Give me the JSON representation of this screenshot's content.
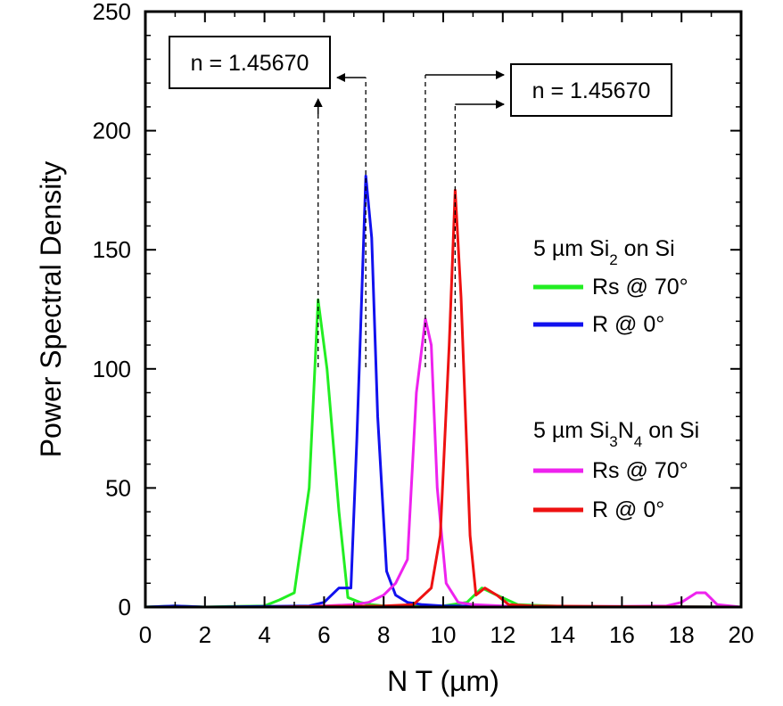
{
  "chart_data": {
    "type": "line",
    "xlabel": "N T (µm)",
    "ylabel": "Power Spectral Density",
    "xlim": [
      0,
      20
    ],
    "ylim": [
      0,
      250
    ],
    "xticks": [
      0,
      2,
      4,
      6,
      8,
      10,
      12,
      14,
      16,
      18,
      20
    ],
    "yticks": [
      0,
      50,
      100,
      150,
      200,
      250
    ],
    "grid": false,
    "legend_groups": [
      {
        "title": {
          "pre": "5 µm Si",
          "sub1": "2",
          "mid": " on Si",
          "sub2": "",
          "post": ""
        },
        "entries": [
          0,
          1
        ]
      },
      {
        "title": {
          "pre": "5 µm Si",
          "sub1": "3",
          "mid": "N",
          "sub2": "4",
          "post": " on Si"
        },
        "entries": [
          2,
          3
        ]
      }
    ],
    "series": [
      {
        "name": "Rs @ 70°",
        "color": "#22ee22",
        "x": [
          0,
          1,
          2,
          3,
          4,
          4.5,
          5,
          5.5,
          5.8,
          6.1,
          6.5,
          6.8,
          7.2,
          7.6,
          8,
          9,
          10,
          10.8,
          11.3,
          11.8,
          12.5,
          14,
          16,
          18,
          20
        ],
        "y": [
          0,
          0.5,
          0,
          0.3,
          0.5,
          3,
          6,
          50,
          129,
          100,
          40,
          4,
          2,
          1,
          0.5,
          0.3,
          0.5,
          2,
          8,
          5,
          1,
          0.3,
          0,
          0.2,
          0
        ]
      },
      {
        "name": "R @ 0°",
        "color": "#1111ee",
        "x": [
          0,
          1,
          2,
          4,
          5.5,
          6,
          6.5,
          6.9,
          7.1,
          7.4,
          7.6,
          7.8,
          8.1,
          8.4,
          8.8,
          9.3,
          10,
          12,
          14,
          16,
          18,
          20
        ],
        "y": [
          0,
          0.5,
          0,
          0.3,
          0.5,
          2,
          8,
          8,
          70,
          181,
          155,
          80,
          15,
          5,
          2,
          1,
          0.5,
          0.3,
          0.2,
          0.1,
          0.1,
          0
        ]
      },
      {
        "name": "Rs @ 70°",
        "color": "#ee22ee",
        "x": [
          0,
          5,
          6,
          7,
          7.5,
          8,
          8.4,
          8.8,
          9.1,
          9.4,
          9.6,
          9.8,
          10.1,
          10.5,
          11,
          12,
          14,
          16,
          17.5,
          18,
          18.5,
          18.8,
          19.2,
          20
        ],
        "y": [
          0,
          0,
          0.5,
          1,
          2,
          5,
          10,
          20,
          90,
          121,
          110,
          50,
          10,
          2,
          1,
          0.5,
          0.3,
          0.3,
          0.5,
          2,
          6,
          6,
          1,
          0
        ]
      },
      {
        "name": "R @ 0°",
        "color": "#ee1111",
        "x": [
          0,
          4,
          6,
          8,
          9,
          9.6,
          9.9,
          10.2,
          10.4,
          10.6,
          10.9,
          11.1,
          11.4,
          11.8,
          12.2,
          13,
          16,
          20
        ],
        "y": [
          0,
          0,
          0.3,
          0.5,
          1,
          8,
          30,
          110,
          175,
          130,
          30,
          5,
          8,
          5,
          1,
          0.5,
          0.2,
          0
        ]
      }
    ],
    "annotations": [
      {
        "label": "n = 1.45670",
        "side": "left",
        "source_x": [
          5.8,
          7.4
        ]
      },
      {
        "label": "n = 1.45670",
        "side": "right",
        "source_x": [
          9.4,
          10.4
        ]
      }
    ]
  }
}
